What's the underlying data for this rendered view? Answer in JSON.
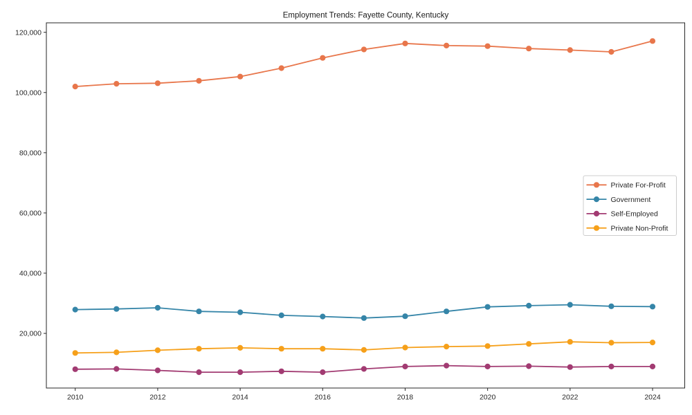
{
  "figure": {
    "background": "#ffffff"
  },
  "chart_data": {
    "type": "line",
    "title": "Employment Trends: Fayette County, Kentucky",
    "xlabel": "",
    "ylabel": "",
    "grid": false,
    "x": [
      2010,
      2011,
      2012,
      2013,
      2014,
      2015,
      2016,
      2017,
      2018,
      2019,
      2020,
      2021,
      2022,
      2023,
      2024
    ],
    "x_ticks": [
      2010,
      2012,
      2014,
      2016,
      2018,
      2020,
      2022,
      2024
    ],
    "x_tick_labels": [
      "2010",
      "2012",
      "2014",
      "2016",
      "2018",
      "2020",
      "2022",
      "2024"
    ],
    "y_ticks": [
      20000,
      40000,
      60000,
      80000,
      100000,
      120000
    ],
    "y_tick_labels": [
      "20,000",
      "40,000",
      "60,000",
      "80,000",
      "100,000",
      "120,000"
    ],
    "xlim": [
      2009.3,
      2024.78
    ],
    "ylim": [
      1850,
      123150
    ],
    "axis_color": "#262626",
    "text_color": "#262626",
    "legend": {
      "position": "center-right",
      "background": "#ffffff",
      "border_color": "#cccccc"
    },
    "series": [
      {
        "name": "Private For-Profit",
        "color": "#E8764B",
        "marker": "circle",
        "values": [
          102000,
          102900,
          103100,
          103900,
          105300,
          108100,
          111500,
          114300,
          116300,
          115600,
          115400,
          114600,
          114100,
          113500,
          117100
        ]
      },
      {
        "name": "Government",
        "color": "#3585A8",
        "marker": "circle",
        "values": [
          27900,
          28100,
          28500,
          27300,
          27000,
          26000,
          25600,
          25100,
          25700,
          27300,
          28800,
          29200,
          29500,
          29000,
          28900
        ]
      },
      {
        "name": "Self-Employed",
        "color": "#A23B72",
        "marker": "circle",
        "values": [
          8100,
          8200,
          7700,
          7100,
          7100,
          7400,
          7100,
          8200,
          9000,
          9300,
          9000,
          9100,
          8800,
          9000,
          9000
        ]
      },
      {
        "name": "Private Non-Profit",
        "color": "#F6A01A",
        "marker": "circle",
        "values": [
          13500,
          13700,
          14400,
          14900,
          15200,
          14900,
          14900,
          14500,
          15300,
          15600,
          15800,
          16500,
          17200,
          16900,
          17000
        ]
      }
    ]
  }
}
